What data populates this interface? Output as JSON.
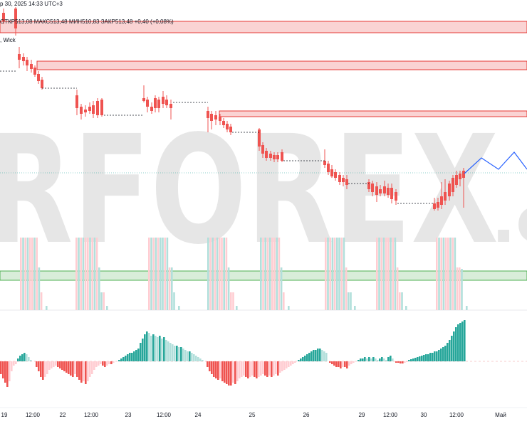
{
  "header": {
    "date_line": "р 30, 2025 14:33 UTC+3",
    "ohlc_line": "ОТКР513,08  МАКС513,48  МИН510,83  ЗАКР513,48  +0,40 (+0,08%)",
    "indicator_fragment": ", Wick"
  },
  "watermark": {
    "text": "RFOREX",
    "suffix": ".c"
  },
  "colors": {
    "up": "#26a69a",
    "down": "#ef5350",
    "up_light": "#b2dfdb",
    "down_light": "#ffcdd2",
    "zone_red_fill": "#f8c4c4",
    "zone_red_line": "#e53935",
    "zone_green_fill": "#c8e6c9",
    "zone_green_line": "#4caf50",
    "forecast": "#2962ff",
    "watermark": "#e6e6e6"
  },
  "chart_data": [
    {
      "type": "candlestick",
      "panel": "price",
      "x_axis_labels": [
        "19",
        "12:00",
        "22",
        "12:00",
        "23",
        "12:00",
        "24",
        "25",
        "26",
        "29",
        "12:00",
        "30",
        "12:00",
        "Май"
      ],
      "resistance_zones": [
        "top",
        "upper",
        "middle"
      ],
      "support_zone": "volume-band",
      "forecast_path": "zigzag",
      "notes": "No price axis is visible; prices trend from ~545 down to ~510 then rebound to 513.48"
    },
    {
      "type": "bar",
      "panel": "volume",
      "notes": "Session volume bars in light red/teal"
    },
    {
      "type": "bar",
      "panel": "histogram oscillator",
      "notes": "Momentum histogram above/below zero line; ends strongly positive"
    }
  ]
}
